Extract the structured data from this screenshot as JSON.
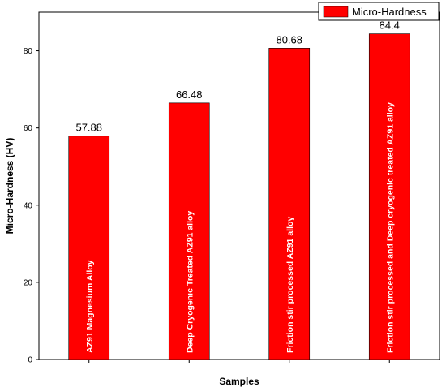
{
  "chart_data": {
    "type": "bar",
    "categories": [
      "AZ91 Magnesium Alloy",
      "Deep Cryogenic Treated AZ91 alloy",
      "Friction stir processed AZ91 alloy",
      "Friction stir processed and Deep cryogenic treated AZ91 alloy"
    ],
    "series": [
      {
        "name": "Micro-Hardness",
        "values": [
          57.88,
          66.48,
          80.68,
          84.4
        ],
        "color": "#ff0000"
      }
    ],
    "value_labels": [
      "57.88",
      "66.48",
      "80.68",
      "84.4"
    ],
    "title": "",
    "xlabel": "Samples",
    "ylabel": "Micro-Hardness (HV)",
    "ylim": [
      0,
      90
    ],
    "yticks": [
      0,
      20,
      40,
      60,
      80
    ],
    "grid": false,
    "legend": "top-right",
    "category_labels_inside_bars": true
  }
}
